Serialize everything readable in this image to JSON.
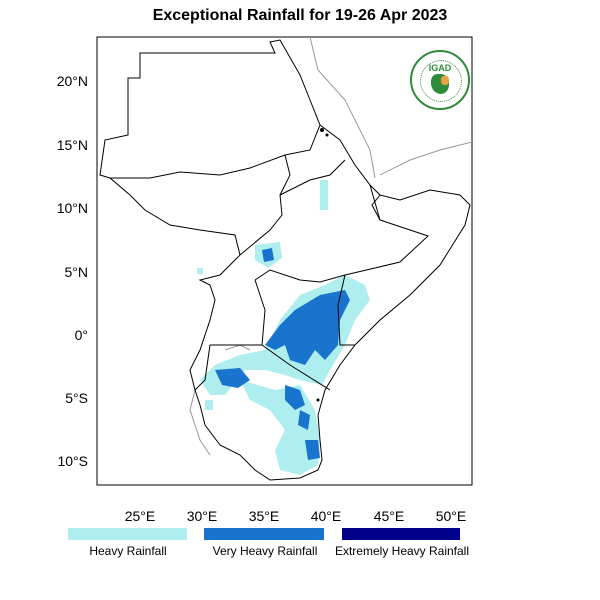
{
  "title": "Exceptional Rainfall for 19-26 Apr 2023",
  "logo_text": "IGAD",
  "lat_labels": [
    "20°N",
    "15°N",
    "10°N",
    "5°N",
    "0°",
    "5°S",
    "10°S"
  ],
  "lon_labels": [
    "25°E",
    "30°E",
    "35°E",
    "40°E",
    "45°E",
    "50°E"
  ],
  "legend": [
    {
      "label": "Heavy Rainfall",
      "color": "#aeeeee"
    },
    {
      "label": "Very Heavy Rainfall",
      "color": "#1874cd"
    },
    {
      "label": "Extremely Heavy Rainfall",
      "color": "#00008b"
    }
  ]
}
